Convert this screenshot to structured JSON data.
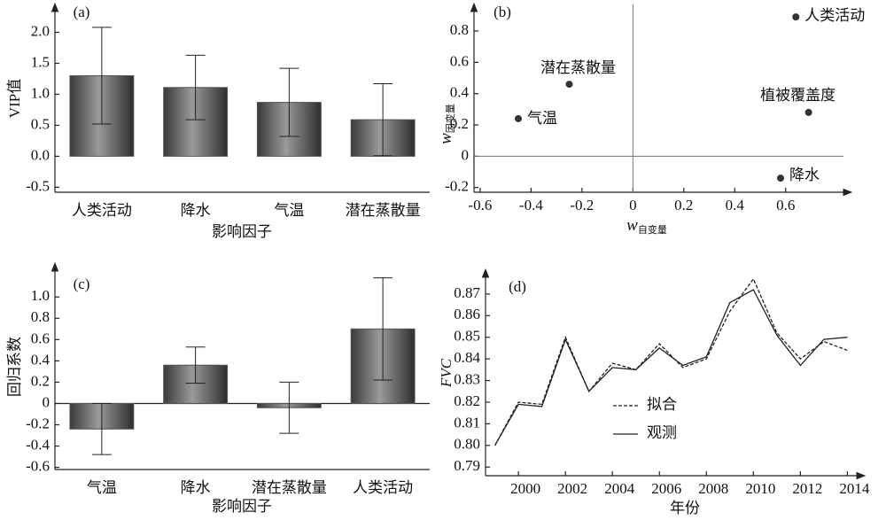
{
  "chart_data": [
    {
      "type": "bar",
      "label": "(a)",
      "ylabel": "VIP值",
      "xlabel": "影响因子",
      "categories": [
        "人类活动",
        "降水",
        "气温",
        "潜在蒸散量"
      ],
      "values": [
        1.3,
        1.11,
        0.87,
        0.59
      ],
      "errors": [
        0.78,
        0.52,
        0.55,
        0.58
      ],
      "ylim": [
        -0.58,
        2.45
      ],
      "yticks": [
        -0.5,
        {
          "value": 0,
          "label": "0.0"
        },
        0.5,
        {
          "value": 1,
          "label": "1.0"
        },
        1.5,
        {
          "value": 2,
          "label": "2.0"
        }
      ],
      "color": "#555555"
    },
    {
      "type": "scatter",
      "label": "(b)",
      "xlabel": {
        "main": "w",
        "sub": "自变量"
      },
      "ylabel": {
        "main": "w",
        "sub": "因变量"
      },
      "points": [
        {
          "label": "人类活动",
          "x": 0.64,
          "y": 0.89
        },
        {
          "label": "潜在蒸散量",
          "x": -0.25,
          "y": 0.46
        },
        {
          "label": "植被覆盖度",
          "x": 0.69,
          "y": 0.28
        },
        {
          "label": "气温",
          "x": -0.45,
          "y": 0.24
        },
        {
          "label": "降水",
          "x": 0.58,
          "y": -0.14
        }
      ],
      "xlim": [
        -0.624,
        0.827
      ],
      "ylim": [
        -0.23,
        0.97
      ],
      "xticks": [
        -0.6,
        -0.4,
        -0.2,
        0,
        0.2,
        0.4,
        0.6
      ],
      "yticks": [
        -0.2,
        0,
        0.2,
        0.4,
        0.6,
        0.8
      ],
      "zero_lines": true,
      "color": "#333333"
    },
    {
      "type": "bar",
      "label": "(c)",
      "ylabel": "回归系数",
      "xlabel": "影响因子",
      "categories": [
        "气温",
        "降水",
        "潜在蒸散量",
        "人类活动"
      ],
      "values": [
        -0.24,
        0.36,
        -0.04,
        0.7
      ],
      "errors": [
        0.24,
        0.17,
        0.24,
        0.48
      ],
      "ylim": [
        -0.62,
        1.31
      ],
      "yticks": [
        -0.6,
        -0.4,
        -0.2,
        0,
        0.2,
        0.4,
        0.6,
        0.8,
        {
          "value": 1,
          "label": "1.0"
        }
      ],
      "zero_line": true,
      "color": "#555555"
    },
    {
      "type": "line",
      "label": "(d)",
      "ylabel": "FVC",
      "xlabel": "年份",
      "x": [
        1999,
        2000,
        2001,
        2002,
        2003,
        2004,
        2005,
        2006,
        2007,
        2008,
        2009,
        2010,
        2011,
        2012,
        2013,
        2014
      ],
      "series": [
        {
          "name": "拟合",
          "color": "#222222",
          "dash": true,
          "values": [
            0.8,
            0.82,
            0.819,
            0.85,
            0.825,
            0.838,
            0.835,
            0.847,
            0.836,
            0.84,
            0.862,
            0.877,
            0.852,
            0.84,
            0.848,
            0.844
          ]
        },
        {
          "name": "观测",
          "color": "#222222",
          "dash": false,
          "values": [
            0.8,
            0.819,
            0.818,
            0.849,
            0.825,
            0.836,
            0.835,
            0.845,
            0.837,
            0.841,
            0.866,
            0.872,
            0.851,
            0.837,
            0.849,
            0.85
          ]
        }
      ],
      "xlim": [
        1998.6,
        2014.4
      ],
      "ylim": [
        0.786,
        0.881
      ],
      "xticks": [
        2000,
        2002,
        2004,
        2006,
        2008,
        2010,
        2012,
        2014
      ],
      "yticks": [
        0.79,
        {
          "value": 0.8,
          "label": "0.80"
        },
        0.81,
        0.82,
        0.83,
        0.84,
        0.85,
        0.86,
        0.87
      ]
    }
  ]
}
